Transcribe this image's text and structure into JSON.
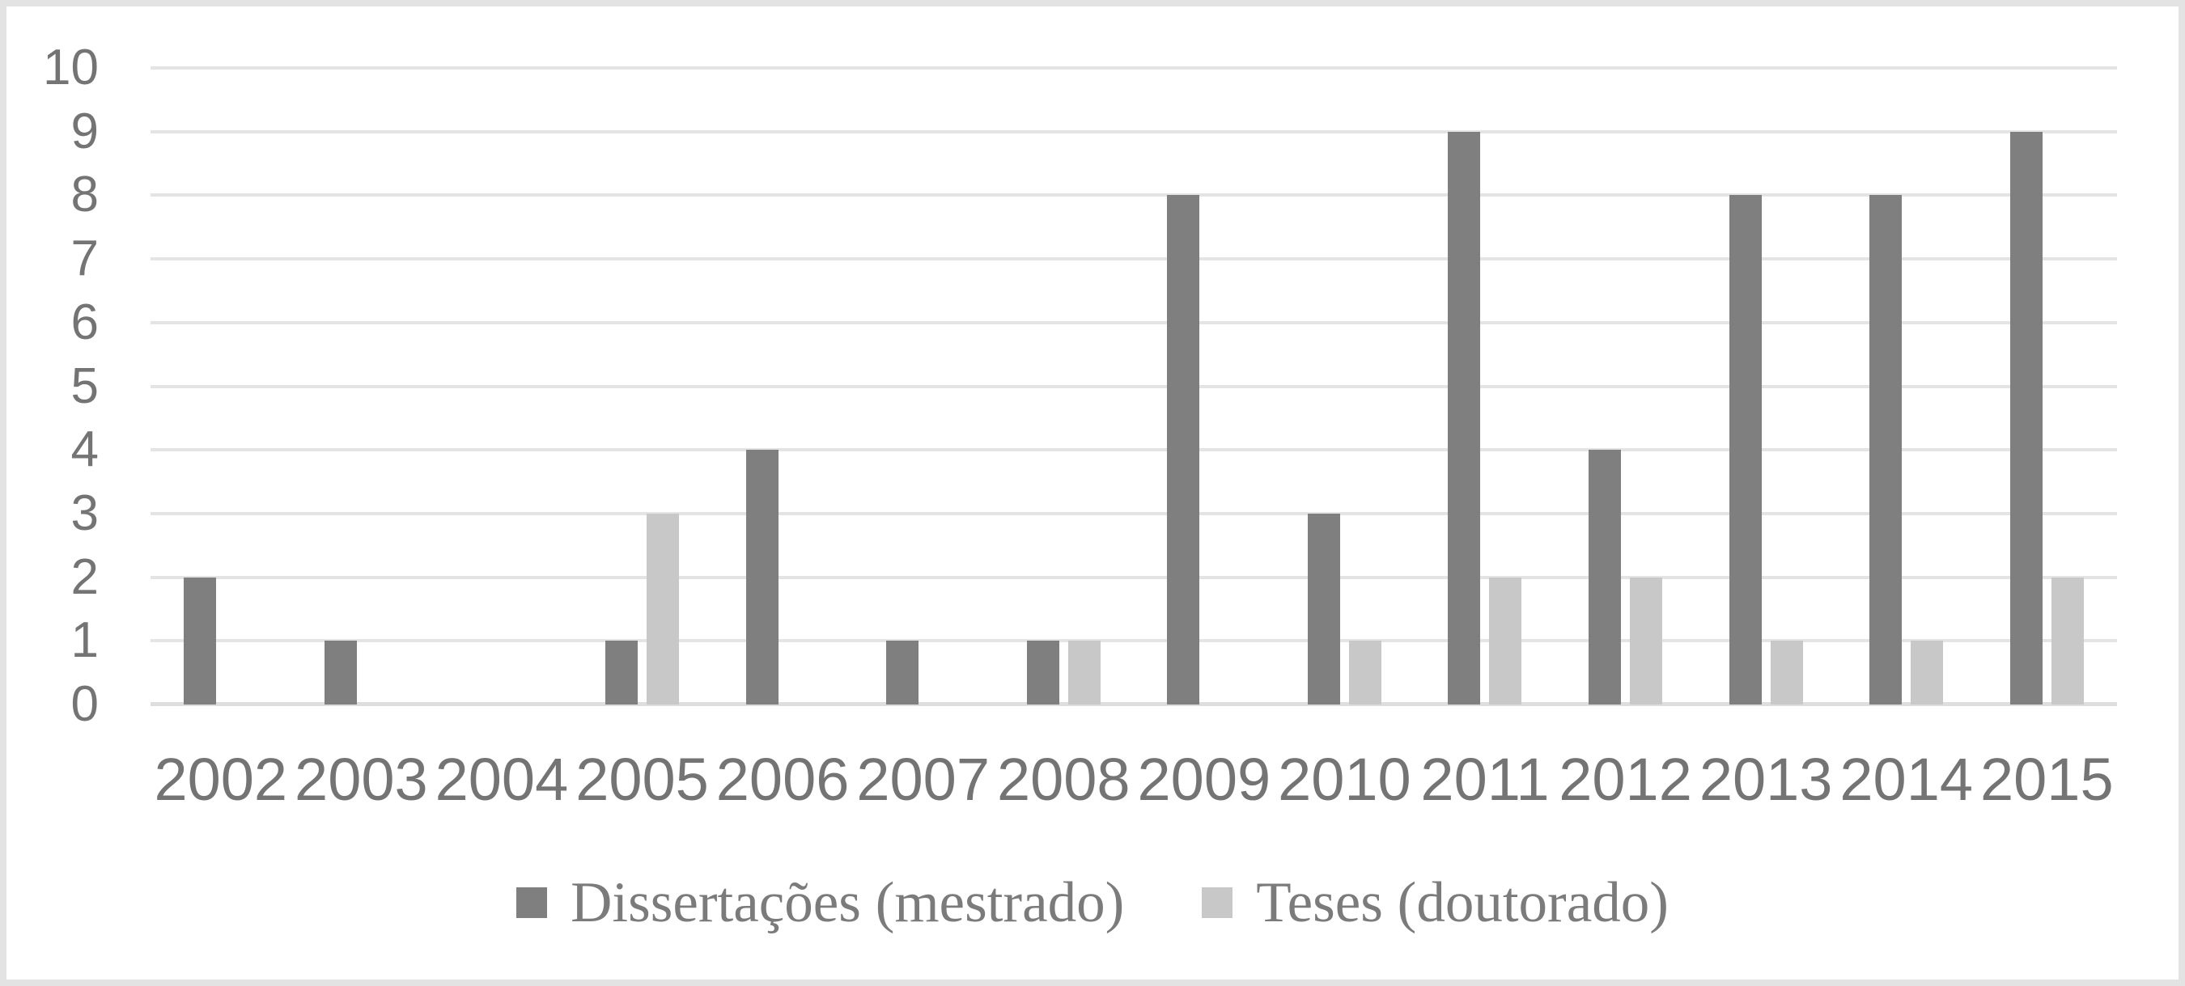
{
  "chart_data": {
    "type": "bar",
    "title": "",
    "xlabel": "",
    "ylabel": "",
    "categories": [
      "2002",
      "2003",
      "2004",
      "2005",
      "2006",
      "2007",
      "2008",
      "2009",
      "2010",
      "2011",
      "2012",
      "2013",
      "2014",
      "2015"
    ],
    "series": [
      {
        "name": "Dissertações (mestrado)",
        "color": "#7f7f7f",
        "values": [
          2,
          1,
          0,
          1,
          4,
          1,
          1,
          8,
          3,
          9,
          4,
          8,
          8,
          9
        ]
      },
      {
        "name": "Teses (doutorado)",
        "color": "#c8c8c8",
        "values": [
          0,
          0,
          0,
          3,
          0,
          0,
          1,
          0,
          1,
          2,
          2,
          1,
          1,
          2
        ]
      }
    ],
    "ylim": [
      0,
      10
    ],
    "y_tick_step": 1,
    "y_ticks": [
      0,
      1,
      2,
      3,
      4,
      5,
      6,
      7,
      8,
      9,
      10
    ],
    "grid": true,
    "legend_position": "bottom",
    "colors": {
      "gridline": "#e4e4e4",
      "axis_line": "#dedede",
      "tick_label": "#747474",
      "legend_text": "#7b7b7b",
      "background": "#ffffff",
      "frame_border": "#e3e3e3"
    }
  }
}
